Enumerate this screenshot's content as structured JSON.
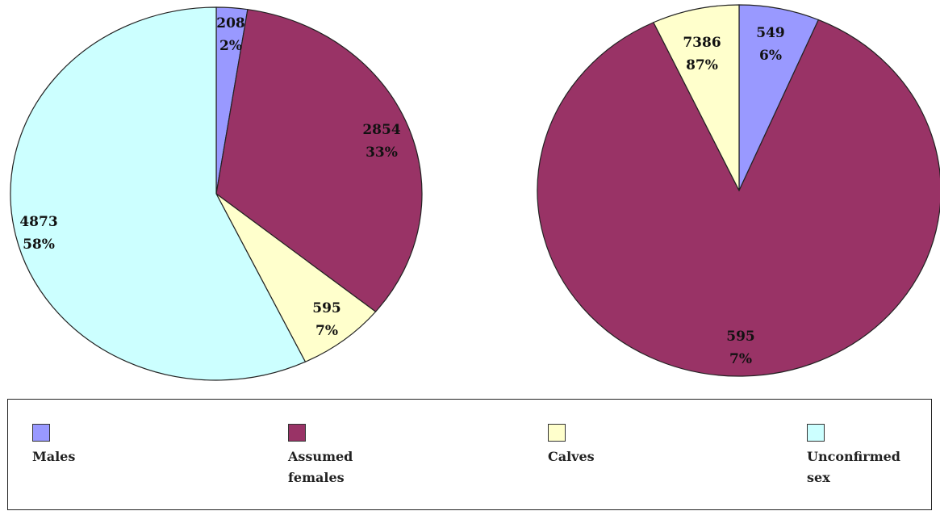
{
  "colors": {
    "Males": "#9999ff",
    "Assumed females": "#993366",
    "Calves": "#ffffcc",
    "Unconfirmed sex": "#ccffff"
  },
  "chart_data": [
    {
      "type": "pie",
      "start_angle_deg": 0,
      "direction": "clockwise",
      "slices": [
        {
          "category": "Males",
          "value": 208,
          "value_label": "208",
          "percent_label": "2%"
        },
        {
          "category": "Assumed females",
          "value": 2854,
          "value_label": "2854",
          "percent_label": "33%"
        },
        {
          "category": "Calves",
          "value": 595,
          "value_label": "595",
          "percent_label": "7%"
        },
        {
          "category": "Unconfirmed sex",
          "value": 4873,
          "value_label": "4873",
          "percent_label": "58%"
        }
      ]
    },
    {
      "type": "pie",
      "start_angle_deg": 0,
      "direction": "clockwise",
      "slices": [
        {
          "category": "Males",
          "value": 549,
          "value_label": "549",
          "percent_label": "6%"
        },
        {
          "category": "Assumed females",
          "value": 7386,
          "value_label": "7386",
          "percent_label": "87%"
        },
        {
          "category": "Calves",
          "value": 595,
          "value_label": "595",
          "percent_label": "7%"
        }
      ]
    }
  ],
  "legend": {
    "placement": "bottom",
    "items": [
      {
        "category": "Males",
        "label": "Males"
      },
      {
        "category": "Assumed females",
        "label": "Assumed\nfemales"
      },
      {
        "category": "Calves",
        "label": "Calves"
      },
      {
        "category": "Unconfirmed sex",
        "label": "Unconfirmed\n sex"
      }
    ]
  }
}
